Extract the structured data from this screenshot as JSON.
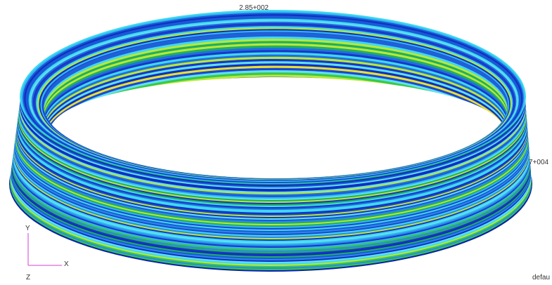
{
  "labels": {
    "top_value": "2.85+002",
    "right_value": "7+004",
    "view_name": "defau"
  },
  "triad": {
    "y": "Y",
    "x": "X",
    "z": "Z"
  }
}
